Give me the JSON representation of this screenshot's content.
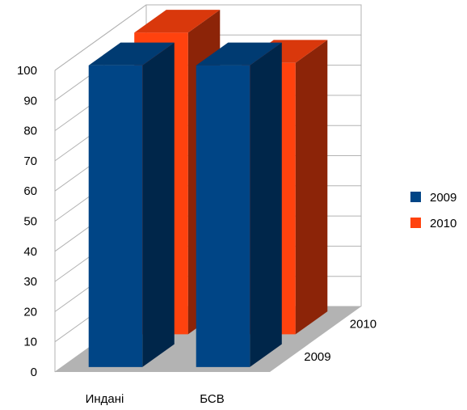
{
  "chart_data": {
    "type": "bar",
    "subtype": "3d-clustered-depth",
    "title": "",
    "xlabel": "",
    "ylabel": "",
    "categories": [
      "Индані",
      "БСВ"
    ],
    "depth_labels": [
      "2009",
      "2010"
    ],
    "series": [
      {
        "name": "2009",
        "values": [
          100,
          100
        ],
        "color": "#004586"
      },
      {
        "name": "2010",
        "values": [
          100,
          90
        ],
        "color": "#ff420e"
      }
    ],
    "y_ticks": [
      "0",
      "10",
      "20",
      "30",
      "40",
      "50",
      "60",
      "70",
      "80",
      "90",
      "100"
    ],
    "ylim": [
      0,
      100
    ],
    "grid": true,
    "legend": {
      "position": "right",
      "items": [
        {
          "label": "2009",
          "color": "#004586"
        },
        {
          "label": "2010",
          "color": "#ff420e"
        }
      ]
    },
    "colors": {
      "floor": "#b3b3b3",
      "grid": "#b3b3b3",
      "axis_line": "#808080"
    }
  }
}
